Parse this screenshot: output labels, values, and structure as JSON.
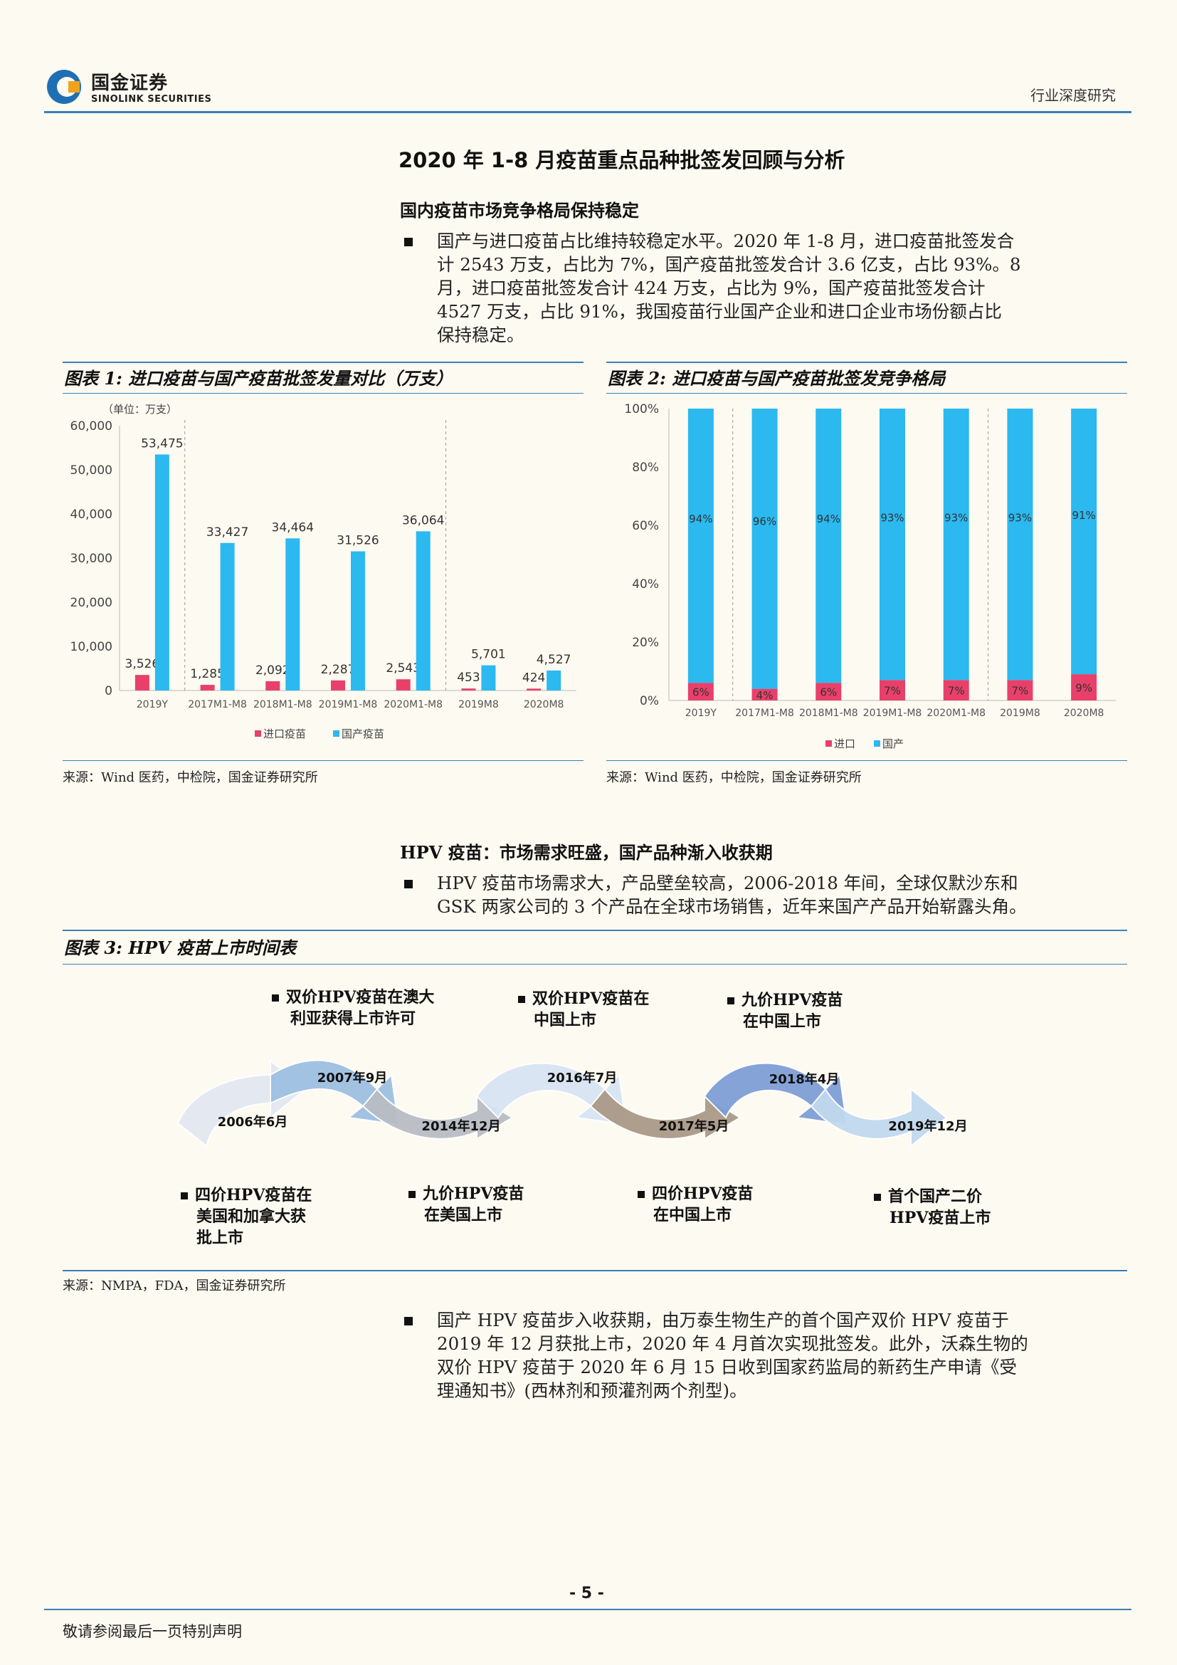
{
  "header": {
    "logo_cn": "国金证券",
    "logo_en": "SINOLINK SECURITIES",
    "doc_type": "行业深度研究"
  },
  "main_title": "2020 年 1-8 月疫苗重点品种批签发回顾与分析",
  "section1": {
    "heading": "国内疫苗市场竞争格局保持稳定",
    "bullet1_lines": [
      "国产与进口疫苗占比维持较稳定水平。2020 年 1-8 月，进口疫苗批签发合",
      "计 2543 万支，占比为 7%，国产疫苗批签发合计 3.6 亿支，占比 93%。8",
      "月，进口疫苗批签发合计 424 万支，占比为 9%，国产疫苗批签发合计",
      "4527 万支，占比 91%，我国疫苗行业国产企业和进口企业市场份额占比",
      "保持稳定。"
    ]
  },
  "figure1": {
    "title": "图表 1:  进口疫苗与国产疫苗批签发量对比（万支）",
    "source": "来源：Wind 医药，中检院，国金证券研究所"
  },
  "figure2": {
    "title": "图表 2:  进口疫苗与国产疫苗批签发竞争格局",
    "source": "来源：Wind 医药，中检院，国金证券研究所"
  },
  "chart_data": [
    {
      "type": "bar",
      "unit_note": "（单位：万支）",
      "categories": [
        "2019Y",
        "2017M1-M8",
        "2018M1-M8",
        "2019M1-M8",
        "2020M1-M8",
        "2019M8",
        "2020M8"
      ],
      "series": [
        {
          "name": "进口疫苗",
          "color": "#e8406a",
          "values": [
            3526,
            1285,
            2092,
            2287,
            2543,
            453,
            424
          ]
        },
        {
          "name": "国产疫苗",
          "color": "#2bb9f0",
          "values": [
            53475,
            33427,
            34464,
            31526,
            36064,
            5701,
            4527
          ]
        }
      ],
      "data_labels": {
        "进口疫苗": [
          "3,526",
          "1,285",
          "2,092",
          "2,287",
          "2,543",
          "453",
          "424"
        ],
        "国产疫苗": [
          "53,475",
          "33,427",
          "34,464",
          "31,526",
          "36,064",
          "5,701",
          "4,527"
        ]
      },
      "yticks": [
        "0",
        "10,000",
        "20,000",
        "30,000",
        "40,000",
        "50,000",
        "60,000"
      ],
      "ylim": [
        0,
        60000
      ],
      "legend": "bottom",
      "grid": false
    },
    {
      "type": "bar",
      "stacked": true,
      "categories": [
        "2019Y",
        "2017M1-M8",
        "2018M1-M8",
        "2019M1-M8",
        "2020M1-M8",
        "2019M8",
        "2020M8"
      ],
      "series": [
        {
          "name": "进口",
          "color": "#e8406a",
          "values": [
            6,
            4,
            6,
            7,
            7,
            7,
            9
          ]
        },
        {
          "name": "国产",
          "color": "#2bb9f0",
          "values": [
            94,
            96,
            94,
            93,
            93,
            93,
            91
          ]
        }
      ],
      "data_labels": {
        "进口": [
          "6%",
          "4%",
          "6%",
          "7%",
          "7%",
          "7%",
          "9%"
        ],
        "国产": [
          "94%",
          "96%",
          "94%",
          "93%",
          "93%",
          "93%",
          "91%"
        ]
      },
      "yticks": [
        "0%",
        "20%",
        "40%",
        "60%",
        "80%",
        "100%"
      ],
      "ylim": [
        0,
        100
      ],
      "legend": "bottom",
      "grid": false
    }
  ],
  "section2": {
    "heading": "HPV 疫苗：市场需求旺盛，国产品种渐入收获期",
    "bullet1_lines": [
      "HPV 疫苗市场需求大，产品壁垒较高，2006-2018 年间，全球仅默沙东和",
      "GSK 两家公司的 3 个产品在全球市场销售，近年来国产产品开始崭露头角。"
    ]
  },
  "figure3": {
    "title": "图表 3:  HPV 疫苗上市时间表",
    "source": "来源：NMPA，FDA，国金证券研究所",
    "dates": [
      "2006年6月",
      "2007年9月",
      "2014年12月",
      "2016年7月",
      "2017年5月",
      "2018年4月",
      "2019年12月"
    ],
    "notes_top": [
      [
        "双价HPV疫苗在澳大",
        "利亚获得上市许可"
      ],
      [
        "双价HPV疫苗在",
        "中国上市"
      ],
      [
        "九价HPV疫苗",
        "在中国上市"
      ]
    ],
    "notes_bottom": [
      [
        "四价HPV疫苗在",
        "美国和加拿大获",
        "批上市"
      ],
      [
        "九价HPV疫苗",
        "在美国上市"
      ],
      [
        "四价HPV疫苗",
        "在中国上市"
      ],
      [
        "首个国产二价",
        "HPV疫苗上市"
      ]
    ],
    "arrow_colors": [
      "#e3e9f1",
      "#9ec0e2",
      "#b9bdc4",
      "#d8e4f3",
      "#aa9a88",
      "#7f9fd6",
      "#c2d9ee"
    ]
  },
  "section3": {
    "bullet1_lines": [
      "国产 HPV 疫苗步入收获期，由万泰生物生产的首个国产双价 HPV 疫苗于",
      "2019 年 12 月获批上市，2020 年 4 月首次实现批签发。此外，沃森生物的",
      "双价 HPV 疫苗于 2020 年 6 月 15 日收到国家药监局的新药生产申请《受",
      "理通知书》(西林剂和预灌剂两个剂型)。"
    ]
  },
  "footer": {
    "page": "- 5 -",
    "note": "敬请参阅最后一页特别声明"
  }
}
